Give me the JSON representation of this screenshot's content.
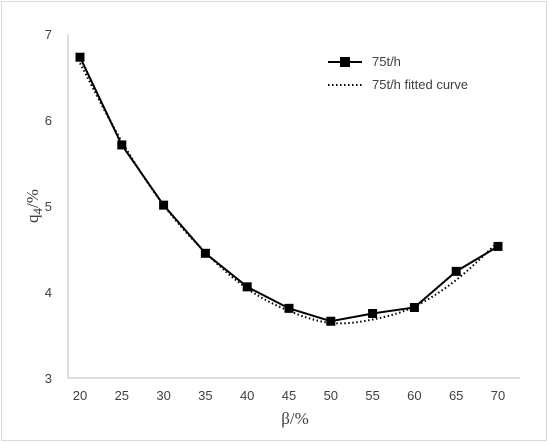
{
  "chart_data": {
    "type": "line",
    "title": "",
    "xlabel": "β/%",
    "ylabel_main": "q",
    "ylabel_sub": "4",
    "ylabel_tail": "/%",
    "x": [
      20,
      25,
      30,
      35,
      40,
      45,
      50,
      55,
      60,
      65,
      70
    ],
    "xlim": [
      20,
      70
    ],
    "ylim": [
      3,
      7
    ],
    "x_ticks": [
      "20",
      "25",
      "30",
      "35",
      "40",
      "45",
      "50",
      "55",
      "60",
      "65",
      "70"
    ],
    "y_ticks": [
      "3",
      "4",
      "5",
      "6",
      "7"
    ],
    "grid": false,
    "legend_position": "top-right",
    "series": [
      {
        "name": "75t/h",
        "style": "solid-square-markers",
        "color": "#000000",
        "values": [
          6.73,
          5.71,
          5.01,
          4.45,
          4.06,
          3.81,
          3.66,
          3.75,
          3.82,
          4.24,
          4.53
        ]
      },
      {
        "name": "75t/h fitted curve",
        "style": "dotted",
        "color": "#000000",
        "values": [
          6.66,
          5.75,
          5.01,
          4.46,
          4.04,
          3.78,
          3.64,
          3.68,
          3.83,
          4.14,
          4.58
        ]
      }
    ]
  }
}
